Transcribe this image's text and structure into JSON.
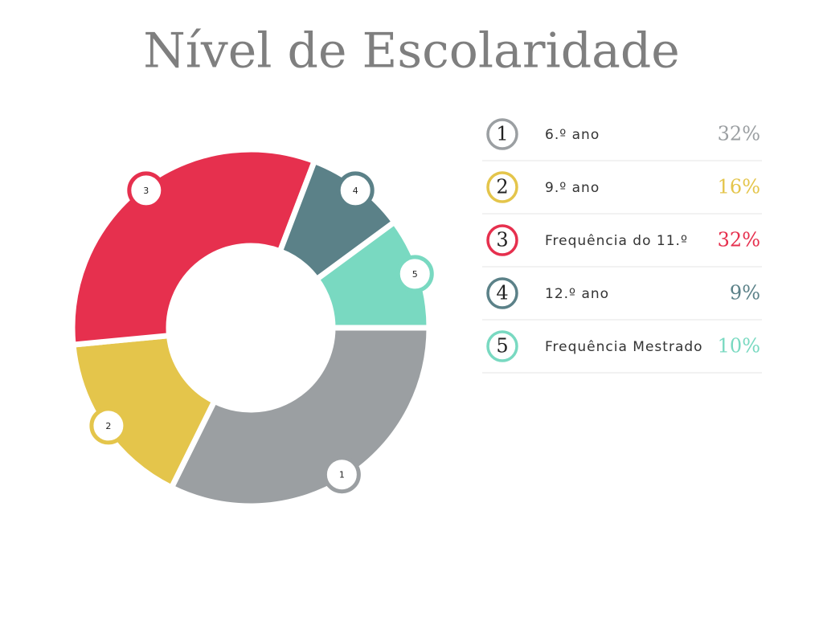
{
  "chart_data": {
    "type": "donut",
    "title": "Nível de Escolaridade",
    "markers": [
      "1",
      "2",
      "3",
      "4",
      "5"
    ],
    "categories": [
      "6.º ano",
      "9.º ano",
      "Frequência do 11.º",
      "12.º ano",
      "Frequência Mestrado"
    ],
    "values": [
      32,
      16,
      32,
      9,
      10
    ],
    "value_labels": [
      "32%",
      "16%",
      "32%",
      "9%",
      "10%"
    ],
    "colors": [
      "#9b9fa2",
      "#e4c54b",
      "#e6304e",
      "#5b8188",
      "#79d9c1"
    ]
  }
}
